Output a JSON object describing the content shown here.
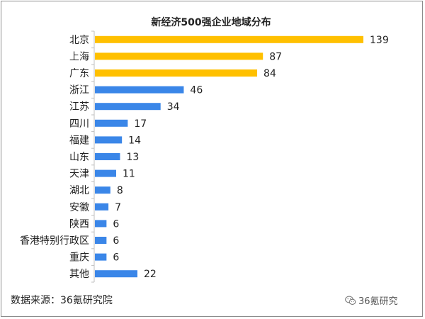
{
  "chart_data": {
    "type": "bar",
    "orientation": "horizontal",
    "title": "新经济500强企业地域分布",
    "categories": [
      "北京",
      "上海",
      "广东",
      "浙江",
      "江苏",
      "四川",
      "福建",
      "山东",
      "天津",
      "湖北",
      "安徽",
      "陕西",
      "香港特别行政区",
      "重庆",
      "其他"
    ],
    "values": [
      139,
      87,
      84,
      46,
      34,
      17,
      14,
      13,
      11,
      8,
      7,
      6,
      6,
      6,
      22
    ],
    "bar_colors": [
      "#FFC000",
      "#FFC000",
      "#FFC000",
      "#3A86E8",
      "#3A86E8",
      "#3A86E8",
      "#3A86E8",
      "#3A86E8",
      "#3A86E8",
      "#3A86E8",
      "#3A86E8",
      "#3A86E8",
      "#3A86E8",
      "#3A86E8",
      "#3A86E8"
    ],
    "data_labels": true,
    "grid": false,
    "legend": "none"
  },
  "footer": {
    "source": "数据来源：36氪研究院",
    "watermark": "36氪研究"
  }
}
